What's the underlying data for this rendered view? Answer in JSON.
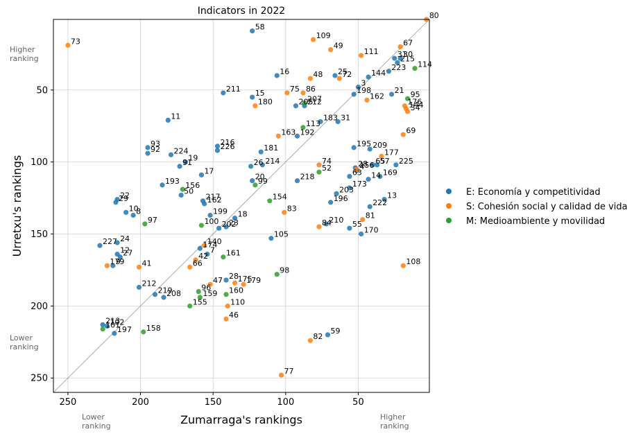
{
  "chart_data": {
    "type": "scatter",
    "title": "Indicators in 2022",
    "xlabel": "Zumarraga's rankings",
    "ylabel": "Urretxu's rankings",
    "xlim": [
      260,
      1
    ],
    "ylim": [
      260,
      1
    ],
    "x_inverted": true,
    "y_inverted": true,
    "xticks": [
      250,
      200,
      150,
      100,
      50
    ],
    "yticks": [
      50,
      100,
      150,
      200,
      250
    ],
    "grid": true,
    "diagonal_line": true,
    "legend_position": "right",
    "corner_labels": {
      "y_top": "Higher\nranking",
      "y_bottom": "Lower\nranking",
      "x_left": "Lower\nranking",
      "x_right": "Higher\nranking"
    },
    "series": [
      {
        "name": "E: Economía y competitividad",
        "color": "#1f77b4",
        "points": [
          {
            "label": "58",
            "x": 123,
            "y": 9
          },
          {
            "label": "16",
            "x": 106,
            "y": 40
          },
          {
            "label": "25",
            "x": 66,
            "y": 40
          },
          {
            "label": "3",
            "x": 50,
            "y": 48
          },
          {
            "label": "144",
            "x": 43,
            "y": 41
          },
          {
            "label": "223",
            "x": 29,
            "y": 37
          },
          {
            "label": "31",
            "x": 25,
            "y": 28
          },
          {
            "label": "30",
            "x": 21,
            "y": 28
          },
          {
            "label": "215",
            "x": 23,
            "y": 31
          },
          {
            "label": "211",
            "x": 143,
            "y": 52
          },
          {
            "label": "15",
            "x": 123,
            "y": 55
          },
          {
            "label": "198",
            "x": 53,
            "y": 53
          },
          {
            "label": "21",
            "x": 27,
            "y": 53
          },
          {
            "label": "205",
            "x": 93,
            "y": 61
          },
          {
            "label": "212",
            "x": 87,
            "y": 61
          },
          {
            "label": "11",
            "x": 181,
            "y": 71
          },
          {
            "label": "183",
            "x": 76,
            "y": 72
          },
          {
            "label": "31",
            "x": 64,
            "y": 72
          },
          {
            "label": "192",
            "x": 92,
            "y": 82
          },
          {
            "label": "93",
            "x": 195,
            "y": 90
          },
          {
            "label": "92",
            "x": 195,
            "y": 94
          },
          {
            "label": "216",
            "x": 147,
            "y": 89
          },
          {
            "label": "226",
            "x": 147,
            "y": 92
          },
          {
            "label": "224",
            "x": 179,
            "y": 95
          },
          {
            "label": "181",
            "x": 117,
            "y": 93
          },
          {
            "label": "195",
            "x": 53,
            "y": 90
          },
          {
            "label": "209",
            "x": 42,
            "y": 91
          },
          {
            "label": "19",
            "x": 169,
            "y": 100
          },
          {
            "label": "91",
            "x": 173,
            "y": 103
          },
          {
            "label": "26",
            "x": 124,
            "y": 103
          },
          {
            "label": "214",
            "x": 116,
            "y": 102
          },
          {
            "label": "65",
            "x": 40,
            "y": 102
          },
          {
            "label": "57",
            "x": 37,
            "y": 102
          },
          {
            "label": "225",
            "x": 24,
            "y": 102
          },
          {
            "label": "28",
            "x": 52,
            "y": 104
          },
          {
            "label": "4",
            "x": 51,
            "y": 106
          },
          {
            "label": "17",
            "x": 158,
            "y": 109
          },
          {
            "label": "20",
            "x": 123,
            "y": 113
          },
          {
            "label": "218",
            "x": 92,
            "y": 113
          },
          {
            "label": "63",
            "x": 56,
            "y": 110
          },
          {
            "label": "14",
            "x": 43,
            "y": 112
          },
          {
            "label": "169",
            "x": 35,
            "y": 110
          },
          {
            "label": "193",
            "x": 185,
            "y": 116
          },
          {
            "label": "50",
            "x": 172,
            "y": 123
          },
          {
            "label": "173",
            "x": 56,
            "y": 118
          },
          {
            "label": "203",
            "x": 65,
            "y": 122
          },
          {
            "label": "22",
            "x": 216,
            "y": 126
          },
          {
            "label": "29",
            "x": 217,
            "y": 128
          },
          {
            "label": "217",
            "x": 157,
            "y": 127
          },
          {
            "label": "162",
            "x": 156,
            "y": 129
          },
          {
            "label": "196",
            "x": 69,
            "y": 128
          },
          {
            "label": "13",
            "x": 32,
            "y": 126
          },
          {
            "label": "222",
            "x": 42,
            "y": 131
          },
          {
            "label": "10",
            "x": 210,
            "y": 135
          },
          {
            "label": "8",
            "x": 205,
            "y": 137
          },
          {
            "label": "199",
            "x": 152,
            "y": 137
          },
          {
            "label": "18",
            "x": 135,
            "y": 139
          },
          {
            "label": "202",
            "x": 146,
            "y": 146
          },
          {
            "label": "23",
            "x": 141,
            "y": 145
          },
          {
            "label": "210",
            "x": 72,
            "y": 143
          },
          {
            "label": "55",
            "x": 56,
            "y": 146
          },
          {
            "label": "170",
            "x": 48,
            "y": 150
          },
          {
            "label": "105",
            "x": 110,
            "y": 153
          },
          {
            "label": "227",
            "x": 228,
            "y": 158
          },
          {
            "label": "24",
            "x": 216,
            "y": 156
          },
          {
            "label": "12",
            "x": 216,
            "y": 164
          },
          {
            "label": "27",
            "x": 214,
            "y": 166
          },
          {
            "label": "174",
            "x": 159,
            "y": 160
          },
          {
            "label": "7",
            "x": 154,
            "y": 164
          },
          {
            "label": "9",
            "x": 219,
            "y": 172
          },
          {
            "label": "28",
            "x": 141,
            "y": 182
          },
          {
            "label": "212",
            "x": 201,
            "y": 187
          },
          {
            "label": "219",
            "x": 190,
            "y": 192
          },
          {
            "label": "208",
            "x": 184,
            "y": 194
          },
          {
            "label": "213",
            "x": 226,
            "y": 213
          },
          {
            "label": "102",
            "x": 223,
            "y": 214
          },
          {
            "label": "197",
            "x": 218,
            "y": 219
          },
          {
            "label": "59",
            "x": 71,
            "y": 220
          }
        ]
      },
      {
        "name": "S: Cohesión social y calidad de vida",
        "color": "#ff7f0e",
        "points": [
          {
            "label": "73",
            "x": 250,
            "y": 19
          },
          {
            "label": "80",
            "x": 3,
            "y": 1
          },
          {
            "label": "109",
            "x": 81,
            "y": 15
          },
          {
            "label": "49",
            "x": 69,
            "y": 22
          },
          {
            "label": "111",
            "x": 48,
            "y": 26
          },
          {
            "label": "67",
            "x": 21,
            "y": 20
          },
          {
            "label": "48",
            "x": 83,
            "y": 42
          },
          {
            "label": "72",
            "x": 63,
            "y": 42
          },
          {
            "label": "75",
            "x": 99,
            "y": 52
          },
          {
            "label": "86",
            "x": 88,
            "y": 52
          },
          {
            "label": "180",
            "x": 121,
            "y": 61
          },
          {
            "label": "162",
            "x": 44,
            "y": 57
          },
          {
            "label": "176",
            "x": 18,
            "y": 61
          },
          {
            "label": "144",
            "x": 17,
            "y": 63
          },
          {
            "label": "34",
            "x": 16,
            "y": 65
          },
          {
            "label": "163",
            "x": 105,
            "y": 82
          },
          {
            "label": "69",
            "x": 19,
            "y": 81
          },
          {
            "label": "177",
            "x": 34,
            "y": 96
          },
          {
            "label": "74",
            "x": 77,
            "y": 102
          },
          {
            "label": "156",
            "x": 51,
            "y": 105
          },
          {
            "label": "83",
            "x": 101,
            "y": 135
          },
          {
            "label": "81",
            "x": 47,
            "y": 140
          },
          {
            "label": "84",
            "x": 77,
            "y": 145
          },
          {
            "label": "140",
            "x": 156,
            "y": 158
          },
          {
            "label": "42",
            "x": 162,
            "y": 168
          },
          {
            "label": "179",
            "x": 223,
            "y": 172
          },
          {
            "label": "41",
            "x": 201,
            "y": 173
          },
          {
            "label": "66",
            "x": 166,
            "y": 173
          },
          {
            "label": "108",
            "x": 19,
            "y": 172
          },
          {
            "label": "47",
            "x": 152,
            "y": 185
          },
          {
            "label": "175",
            "x": 135,
            "y": 184
          },
          {
            "label": "179",
            "x": 129,
            "y": 185
          },
          {
            "label": "110",
            "x": 140,
            "y": 200
          },
          {
            "label": "46",
            "x": 141,
            "y": 209
          },
          {
            "label": "82",
            "x": 83,
            "y": 224
          },
          {
            "label": "77",
            "x": 103,
            "y": 248
          }
        ]
      },
      {
        "name": "M: Medioambiente y movilidad",
        "color": "#2ca02c",
        "points": [
          {
            "label": "114",
            "x": 11,
            "y": 35
          },
          {
            "label": "95",
            "x": 16,
            "y": 56
          },
          {
            "label": "207",
            "x": 87,
            "y": 59
          },
          {
            "label": "113",
            "x": 88,
            "y": 76
          },
          {
            "label": "52",
            "x": 77,
            "y": 107
          },
          {
            "label": "99",
            "x": 121,
            "y": 116
          },
          {
            "label": "156",
            "x": 171,
            "y": 119
          },
          {
            "label": "154",
            "x": 111,
            "y": 127
          },
          {
            "label": "97",
            "x": 197,
            "y": 143
          },
          {
            "label": "100",
            "x": 158,
            "y": 144
          },
          {
            "label": "161",
            "x": 143,
            "y": 166
          },
          {
            "label": "98",
            "x": 106,
            "y": 178
          },
          {
            "label": "96",
            "x": 160,
            "y": 190
          },
          {
            "label": "159",
            "x": 159,
            "y": 194
          },
          {
            "label": "160",
            "x": 141,
            "y": 192
          },
          {
            "label": "155",
            "x": 166,
            "y": 200
          },
          {
            "label": "101",
            "x": 226,
            "y": 216
          },
          {
            "label": "158",
            "x": 198,
            "y": 218
          }
        ]
      }
    ]
  }
}
